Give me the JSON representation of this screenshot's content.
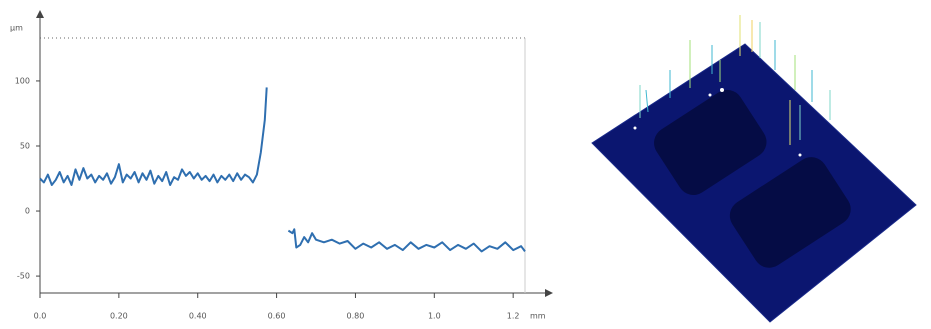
{
  "chart_data": {
    "type": "line",
    "y_label": "µm",
    "x_label": "mm",
    "x": [
      0,
      0.01,
      0.02,
      0.03,
      0.04,
      0.05,
      0.06,
      0.07,
      0.08,
      0.09,
      0.1,
      0.11,
      0.12,
      0.13,
      0.14,
      0.15,
      0.16,
      0.17,
      0.18,
      0.19,
      0.2,
      0.21,
      0.22,
      0.23,
      0.24,
      0.25,
      0.26,
      0.27,
      0.28,
      0.29,
      0.3,
      0.31,
      0.32,
      0.33,
      0.34,
      0.35,
      0.36,
      0.37,
      0.38,
      0.39,
      0.4,
      0.41,
      0.42,
      0.43,
      0.44,
      0.45,
      0.46,
      0.47,
      0.48,
      0.49,
      0.5,
      0.51,
      0.52,
      0.53,
      0.54,
      0.55,
      0.56,
      0.57,
      0.575,
      0.6,
      0.63,
      0.64,
      0.645,
      0.65,
      0.66,
      0.67,
      0.68,
      0.69,
      0.7,
      0.72,
      0.74,
      0.76,
      0.78,
      0.8,
      0.82,
      0.84,
      0.86,
      0.88,
      0.9,
      0.92,
      0.94,
      0.96,
      0.98,
      1.0,
      1.02,
      1.04,
      1.06,
      1.08,
      1.1,
      1.12,
      1.14,
      1.16,
      1.18,
      1.2,
      1.22,
      1.23
    ],
    "values": [
      25,
      22,
      28,
      20,
      24,
      30,
      22,
      27,
      20,
      32,
      24,
      33,
      25,
      28,
      22,
      27,
      24,
      29,
      21,
      26,
      36,
      22,
      28,
      25,
      30,
      22,
      29,
      24,
      31,
      21,
      27,
      23,
      30,
      20,
      26,
      24,
      32,
      27,
      30,
      25,
      29,
      24,
      27,
      23,
      28,
      22,
      27,
      24,
      28,
      23,
      29,
      24,
      28,
      26,
      22,
      28,
      45,
      70,
      95,
      null,
      -15,
      -17,
      -14,
      -28,
      -26,
      -20,
      -24,
      -17,
      -22,
      -24,
      -22,
      -25,
      -23,
      -29,
      -25,
      -28,
      -24,
      -29,
      -26,
      -30,
      -24,
      -29,
      -26,
      -28,
      -24,
      -30,
      -26,
      -29,
      -25,
      -31,
      -27,
      -29,
      -24,
      -30,
      -27,
      -31
    ],
    "color": "#2f6fb0",
    "xlim": [
      0,
      1.23
    ],
    "ylim": [
      -63,
      133
    ],
    "xticks": [
      {
        "value": 0,
        "label": "0.0"
      },
      {
        "value": 0.2,
        "label": "0.20"
      },
      {
        "value": 0.4,
        "label": "0.40"
      },
      {
        "value": 0.6,
        "label": "0.60"
      },
      {
        "value": 0.8,
        "label": "0.80"
      },
      {
        "value": 1,
        "label": "1.0"
      },
      1.2
    ],
    "yticks": [
      -50,
      0,
      50,
      100
    ],
    "grid": false
  }
}
